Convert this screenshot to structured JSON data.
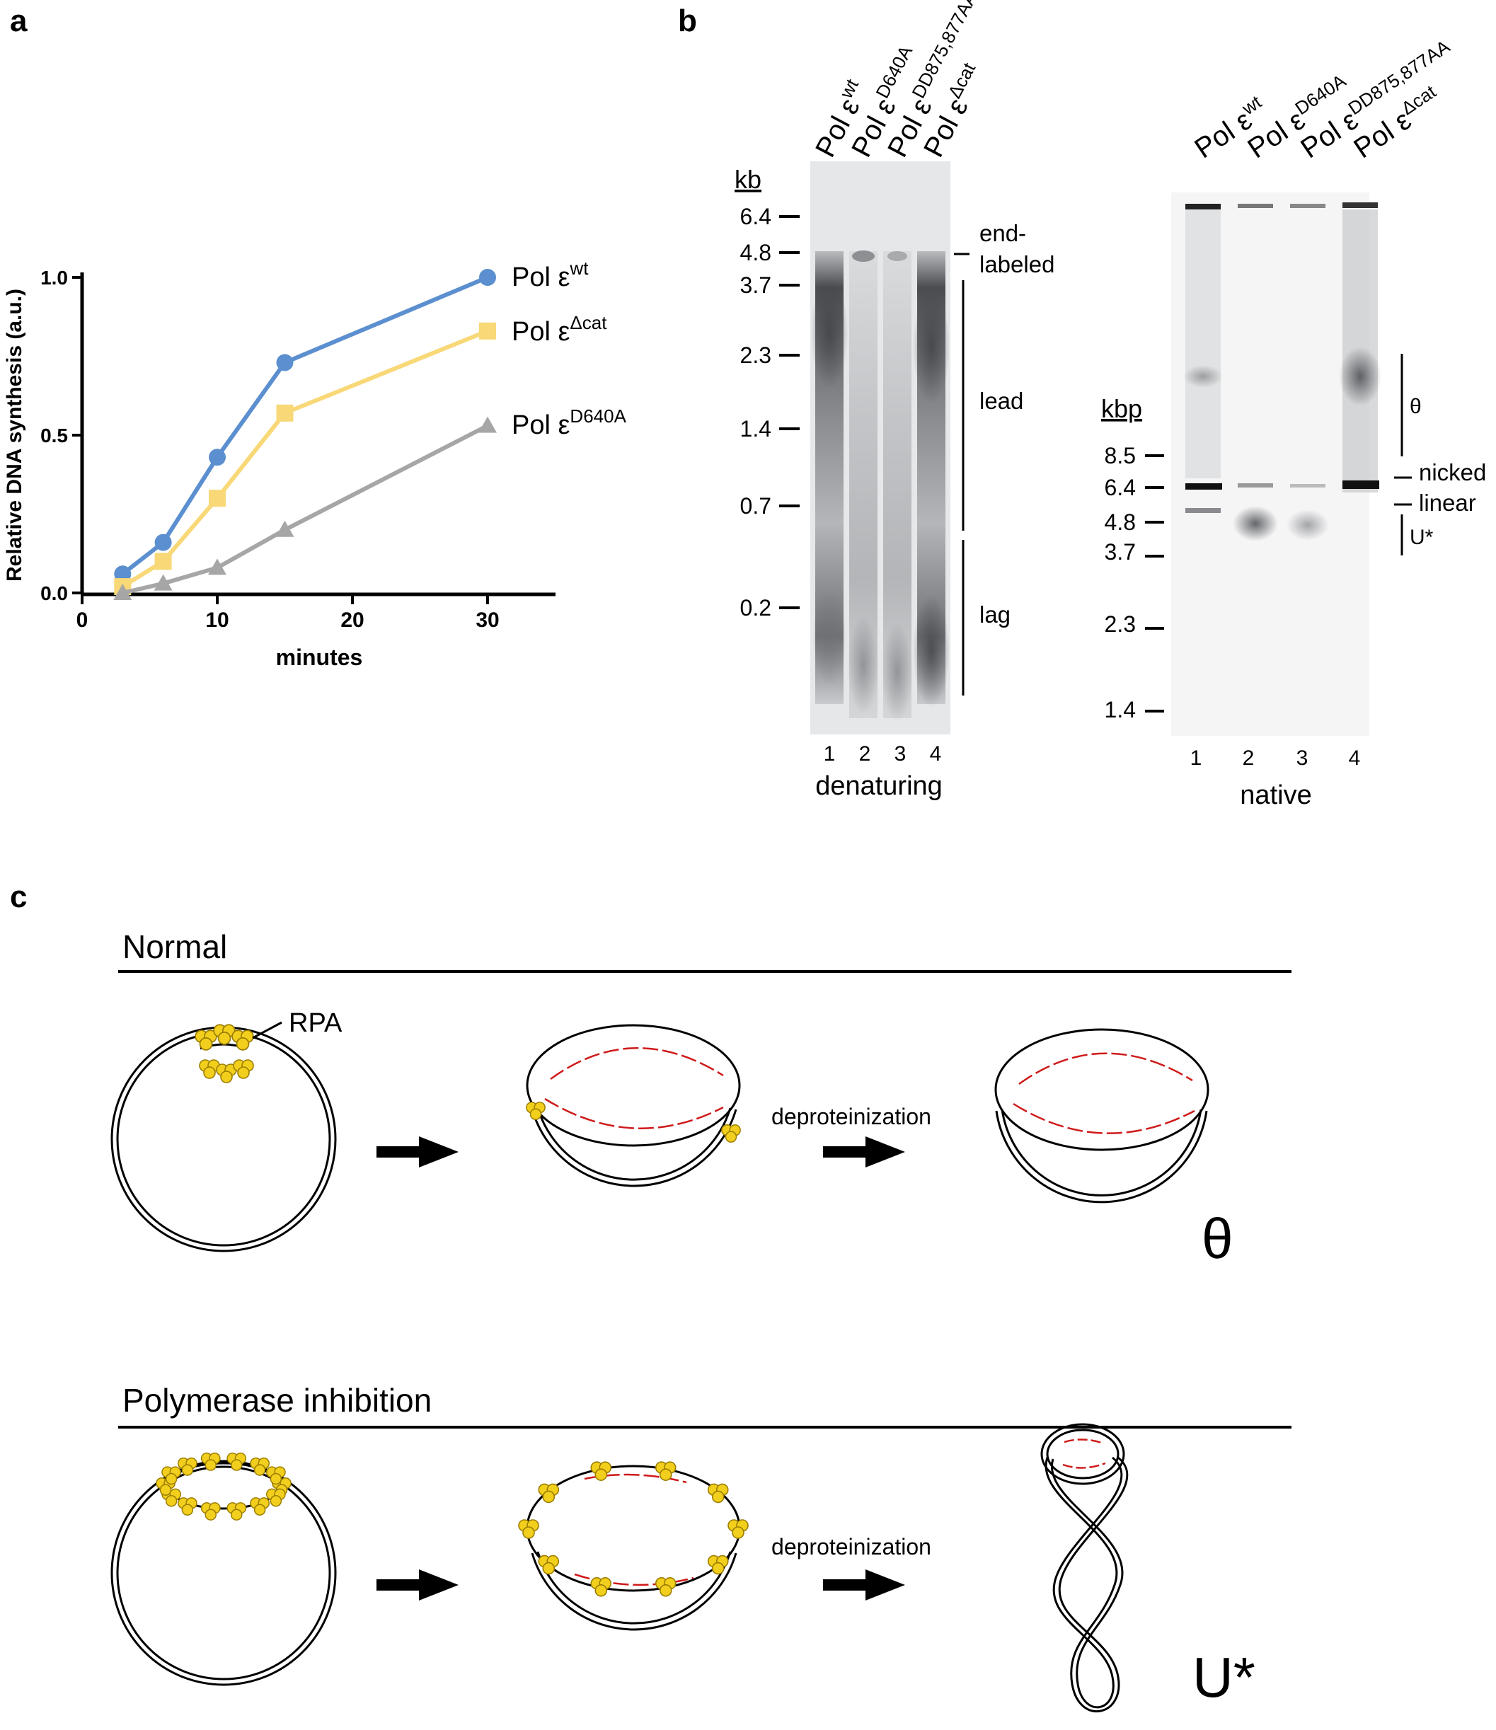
{
  "panels": {
    "a": "a",
    "b": "b",
    "c": "c"
  },
  "panel_a": {
    "ylabel": "Relative DNA synthesis (a.u.)",
    "xlabel": "minutes",
    "y_ticks": [
      "0.0",
      "0.5",
      "1.0"
    ],
    "x_ticks": [
      "0",
      "10",
      "20",
      "30"
    ],
    "legend": [
      {
        "prefix": "Pol ε",
        "sup": "wt",
        "color": "#5b8fcf"
      },
      {
        "prefix": "Pol ε",
        "sup": "Δcat",
        "color": "#f8d877"
      },
      {
        "prefix": "Pol ε",
        "sup": "D640A",
        "color": "#a6a6a6"
      }
    ]
  },
  "chart_data": {
    "type": "line",
    "xlabel": "minutes",
    "ylabel": "Relative DNA synthesis (a.u.)",
    "xlim": [
      0,
      35
    ],
    "ylim": [
      0,
      1.0
    ],
    "x": [
      3,
      6,
      10,
      15,
      30
    ],
    "series": [
      {
        "name": "Pol εwt",
        "color": "#5b8fcf",
        "marker": "circle",
        "values": [
          0.06,
          0.16,
          0.43,
          0.73,
          1.0
        ]
      },
      {
        "name": "Pol εΔcat",
        "color": "#f8d877",
        "marker": "square",
        "values": [
          0.02,
          0.1,
          0.3,
          0.57,
          0.83
        ]
      },
      {
        "name": "Pol εD640A",
        "color": "#a6a6a6",
        "marker": "triangle",
        "values": [
          0.0,
          0.03,
          0.08,
          0.2,
          0.53
        ]
      }
    ]
  },
  "panel_b": {
    "lane_headers": [
      {
        "prefix": "Pol ε",
        "sup": "wt"
      },
      {
        "prefix": "Pol ε",
        "sup": "D640A"
      },
      {
        "prefix": "Pol ε",
        "sup": "DD875,877AA"
      },
      {
        "prefix": "Pol ε",
        "sup": "Δcat"
      }
    ],
    "denaturing": {
      "unit": "kb",
      "markers": [
        "6.4",
        "4.8",
        "3.7",
        "2.3",
        "1.4",
        "0.7",
        "0.2"
      ],
      "annotations": [
        "end-",
        "labeled",
        "lead",
        "lag"
      ],
      "lanes": [
        "1",
        "2",
        "3",
        "4"
      ],
      "caption": "denaturing"
    },
    "native": {
      "unit": "kbp",
      "markers": [
        "8.5",
        "6.4",
        "4.8",
        "3.7",
        "2.3",
        "1.4"
      ],
      "annotations": [
        "θ",
        "nicked",
        "linear",
        "U*"
      ],
      "lanes": [
        "1",
        "2",
        "3",
        "4"
      ],
      "caption": "native"
    }
  },
  "panel_c": {
    "normal": {
      "title": "Normal",
      "rpa_label": "RPA",
      "step_label": "deproteinization",
      "result": "θ"
    },
    "inhibition": {
      "title": "Polymerase inhibition",
      "step_label": "deproteinization",
      "result": "U*"
    }
  }
}
